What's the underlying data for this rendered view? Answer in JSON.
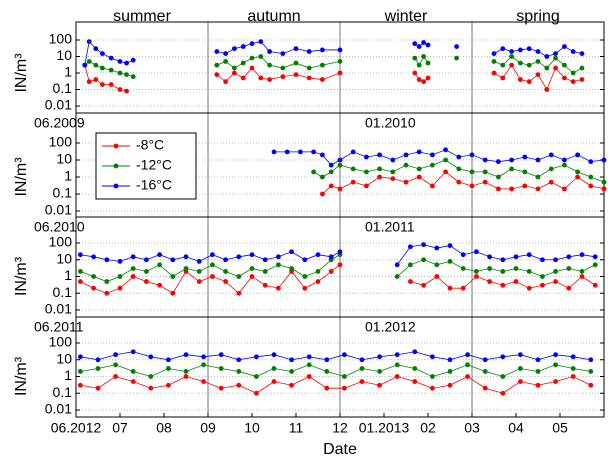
{
  "chart_data": [
    {
      "type": "line",
      "ylabel": "IN/m³",
      "yscale": "log",
      "ylim": [
        0.01,
        100
      ],
      "yticks": [
        0.01,
        0.1,
        1,
        10,
        100
      ],
      "xlim": [
        0,
        12
      ],
      "grid": true,
      "vlines": [
        3,
        6,
        9
      ],
      "seasons": [
        "summer",
        "autumn",
        "winter",
        "spring"
      ],
      "x": [
        0.2,
        0.3,
        0.45,
        0.6,
        0.8,
        1.0,
        1.15,
        1.3,
        2.5,
        3.2,
        3.4,
        3.6,
        3.8,
        4.0,
        4.2,
        4.4,
        4.7,
        5.0,
        5.3,
        5.6,
        6.0,
        7.0,
        7.7,
        7.8,
        7.9,
        8.0,
        8.3,
        8.65,
        9.0,
        9.5,
        9.7,
        9.9,
        10.1,
        10.3,
        10.5,
        10.7,
        10.9,
        11.1,
        11.3,
        11.5
      ],
      "series": [
        {
          "color": "#ff0000",
          "values": [
            3,
            0.3,
            0.4,
            0.2,
            0.2,
            0.1,
            0.08,
            null,
            null,
            0.8,
            0.3,
            1,
            0.5,
            2,
            0.5,
            0.4,
            0.6,
            0.8,
            0.5,
            0.4,
            1,
            null,
            1,
            0.4,
            0.3,
            0.5,
            null,
            null,
            null,
            1,
            0.5,
            3,
            0.4,
            0.3,
            0.8,
            0.1,
            2,
            0.5,
            0.3,
            0.4
          ]
        },
        {
          "color": "#008000",
          "values": [
            3,
            5,
            3,
            2,
            1.5,
            1,
            0.8,
            0.6,
            null,
            3,
            5,
            2,
            4,
            8,
            10,
            3,
            2,
            4,
            2,
            3,
            5,
            null,
            8,
            3,
            10,
            4,
            null,
            8,
            null,
            5,
            3,
            10,
            4,
            3,
            5,
            2,
            8,
            3,
            1,
            2
          ]
        },
        {
          "color": "#0000ff",
          "values": [
            3,
            80,
            30,
            15,
            8,
            5,
            4,
            6,
            null,
            20,
            15,
            30,
            40,
            60,
            80,
            20,
            15,
            30,
            20,
            25,
            25,
            null,
            60,
            40,
            70,
            50,
            null,
            40,
            null,
            15,
            30,
            20,
            25,
            30,
            20,
            10,
            15,
            40,
            20,
            15
          ]
        }
      ]
    },
    {
      "type": "line",
      "ylabel": "IN/m³",
      "yscale": "log",
      "ylim": [
        0.01,
        100
      ],
      "yticks": [
        0.01,
        0.1,
        1,
        10,
        100
      ],
      "xlim": [
        0,
        12
      ],
      "grid": true,
      "vlines": [
        3,
        6,
        9
      ],
      "annotations": [
        "06.2009",
        "01.2010"
      ],
      "legend": "upper left",
      "x": [
        4.5,
        4.8,
        5.1,
        5.4,
        5.6,
        5.8,
        6.0,
        6.3,
        6.6,
        6.9,
        7.2,
        7.5,
        7.8,
        8.1,
        8.4,
        8.7,
        9.0,
        9.3,
        9.6,
        9.9,
        10.2,
        10.5,
        10.8,
        11.1,
        11.4,
        11.7,
        12.0
      ],
      "series": [
        {
          "name": "-8°C",
          "color": "#ff0000",
          "values": [
            null,
            null,
            null,
            null,
            0.1,
            0.3,
            0.2,
            0.5,
            0.3,
            1,
            0.8,
            0.5,
            1,
            0.3,
            2,
            0.5,
            0.3,
            0.5,
            0.2,
            0.2,
            0.3,
            0.2,
            0.5,
            0.2,
            1,
            0.3,
            0.2
          ]
        },
        {
          "name": "-12°C",
          "color": "#008000",
          "values": [
            null,
            null,
            null,
            2,
            1,
            2,
            5,
            3,
            2,
            3,
            2,
            5,
            3,
            5,
            10,
            3,
            2,
            2,
            1,
            3,
            2,
            1,
            3,
            5,
            2,
            1,
            0.5
          ]
        },
        {
          "name": "-16°C",
          "color": "#0000ff",
          "values": [
            30,
            30,
            30,
            30,
            20,
            5,
            10,
            30,
            15,
            20,
            10,
            20,
            30,
            20,
            40,
            15,
            20,
            10,
            8,
            10,
            15,
            10,
            20,
            10,
            20,
            8,
            10
          ]
        }
      ]
    },
    {
      "type": "line",
      "ylabel": "IN/m³",
      "yscale": "log",
      "ylim": [
        0.01,
        100
      ],
      "yticks": [
        0.01,
        0.1,
        1,
        10,
        100
      ],
      "xlim": [
        0,
        12
      ],
      "grid": true,
      "vlines": [
        3,
        6,
        9
      ],
      "annotations": [
        "06.2010",
        "01.2011"
      ],
      "x": [
        0.1,
        0.4,
        0.7,
        1.0,
        1.3,
        1.6,
        1.9,
        2.2,
        2.5,
        2.8,
        3.1,
        3.4,
        3.7,
        4.0,
        4.3,
        4.6,
        4.9,
        5.2,
        5.5,
        5.8,
        6.0,
        6.7,
        7.3,
        7.6,
        7.9,
        8.2,
        8.5,
        8.8,
        9.1,
        9.4,
        9.7,
        10.0,
        10.3,
        10.6,
        10.9,
        11.2,
        11.5,
        11.8
      ],
      "series": [
        {
          "color": "#ff0000",
          "values": [
            0.5,
            0.2,
            0.1,
            0.2,
            1,
            0.5,
            0.3,
            0.1,
            2,
            0.5,
            1,
            0.5,
            0.1,
            1,
            0.3,
            0.2,
            2,
            0.2,
            0.5,
            2,
            5,
            null,
            null,
            0.5,
            0.3,
            1,
            0.2,
            0.2,
            1,
            0.5,
            0.3,
            0.5,
            0.2,
            0.3,
            0.5,
            0.2,
            1,
            0.3
          ]
        },
        {
          "color": "#008000",
          "values": [
            2,
            1,
            0.5,
            1,
            3,
            2,
            5,
            1,
            3,
            2,
            5,
            2,
            1,
            3,
            2,
            5,
            3,
            1,
            2,
            10,
            20,
            null,
            1,
            5,
            10,
            5,
            8,
            3,
            2,
            3,
            2,
            3,
            2,
            1,
            2,
            3,
            2,
            5
          ]
        },
        {
          "color": "#0000ff",
          "values": [
            20,
            15,
            10,
            8,
            15,
            10,
            20,
            10,
            15,
            8,
            20,
            10,
            15,
            20,
            10,
            15,
            30,
            10,
            20,
            15,
            30,
            null,
            5,
            60,
            80,
            50,
            70,
            20,
            30,
            15,
            10,
            15,
            20,
            10,
            10,
            15,
            20,
            15
          ]
        }
      ]
    },
    {
      "type": "line",
      "ylabel": "IN/m³",
      "yscale": "log",
      "ylim": [
        0.01,
        100
      ],
      "yticks": [
        0.01,
        0.1,
        1,
        10,
        100
      ],
      "xlim": [
        0,
        12
      ],
      "grid": true,
      "vlines": [
        3,
        6,
        9
      ],
      "annotations": [
        "06.2011",
        "01.2012"
      ],
      "xlabel": "Date",
      "xticks": [
        {
          "value": 0,
          "label": "06.2012"
        },
        {
          "value": 1,
          "label": "07"
        },
        {
          "value": 2,
          "label": "08"
        },
        {
          "value": 3,
          "label": "09"
        },
        {
          "value": 4,
          "label": "10"
        },
        {
          "value": 5,
          "label": "11"
        },
        {
          "value": 6,
          "label": "12"
        },
        {
          "value": 7,
          "label": "01.2013"
        },
        {
          "value": 8,
          "label": "02"
        },
        {
          "value": 9,
          "label": "03"
        },
        {
          "value": 10,
          "label": "04"
        },
        {
          "value": 11,
          "label": "05"
        }
      ],
      "x": [
        0.1,
        0.5,
        0.9,
        1.3,
        1.7,
        2.1,
        2.5,
        2.9,
        3.3,
        3.7,
        4.1,
        4.5,
        4.9,
        5.3,
        5.7,
        6.1,
        6.5,
        6.9,
        7.3,
        7.7,
        8.1,
        8.5,
        8.9,
        9.3,
        9.7,
        10.1,
        10.5,
        10.9,
        11.3,
        11.7
      ],
      "series": [
        {
          "color": "#ff0000",
          "values": [
            0.3,
            0.2,
            1,
            0.5,
            0.2,
            0.3,
            1,
            0.5,
            0.2,
            0.3,
            0.1,
            0.5,
            0.3,
            1,
            0.2,
            0.2,
            0.5,
            0.3,
            1,
            0.5,
            0.2,
            0.3,
            1,
            0.2,
            0.1,
            0.5,
            0.3,
            0.5,
            1,
            0.3
          ]
        },
        {
          "color": "#008000",
          "values": [
            2,
            3,
            5,
            2,
            1,
            3,
            2,
            5,
            3,
            2,
            1,
            3,
            2,
            5,
            2,
            1,
            3,
            2,
            5,
            3,
            1,
            2,
            5,
            2,
            1,
            3,
            2,
            5,
            3,
            2
          ]
        },
        {
          "color": "#0000ff",
          "values": [
            15,
            10,
            20,
            30,
            15,
            10,
            20,
            15,
            20,
            10,
            15,
            20,
            10,
            15,
            10,
            20,
            10,
            15,
            20,
            30,
            15,
            10,
            20,
            10,
            15,
            20,
            10,
            20,
            15,
            10
          ]
        }
      ]
    }
  ]
}
